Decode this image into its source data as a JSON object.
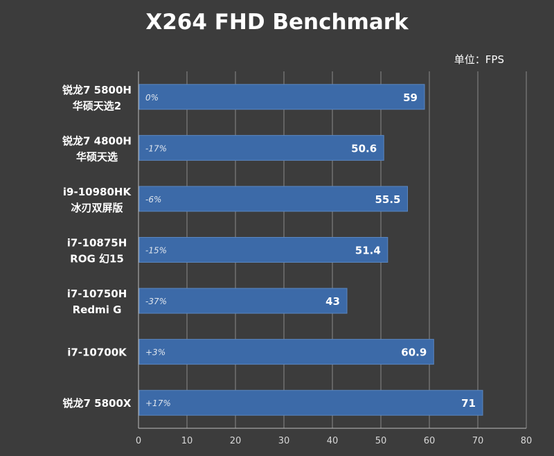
{
  "chart_data": {
    "type": "bar",
    "orientation": "horizontal",
    "title": "X264 FHD Benchmark",
    "unit_label": "单位：FPS",
    "categories": [
      [
        "锐龙7 5800H",
        "华硕天选2"
      ],
      [
        "锐龙7 4800H",
        "华硕天选"
      ],
      [
        "i9-10980HK",
        "冰刃双屏版"
      ],
      [
        "i7-10875H",
        "ROG 幻15"
      ],
      [
        "i7-10750H",
        "Redmi G"
      ],
      [
        "i7-10700K"
      ],
      [
        "锐龙7 5800X"
      ]
    ],
    "values": [
      59,
      50.6,
      55.5,
      51.4,
      43,
      60.9,
      71
    ],
    "value_labels": [
      "59",
      "50.6",
      "55.5",
      "51.4",
      "43",
      "60.9",
      "71"
    ],
    "percent_labels": [
      "0%",
      "-17%",
      "-6%",
      "-15%",
      "-37%",
      "+3%",
      "+17%"
    ],
    "xlim": [
      0,
      80
    ],
    "xticks": [
      0,
      10,
      20,
      30,
      40,
      50,
      60,
      70,
      80
    ],
    "grid": true,
    "colors": {
      "background": "#3c3c3c",
      "bar": "#3c6aa8",
      "bar_edge": "#5a86c0",
      "grid": "#8a8a8a",
      "axis": "#bdbdbd"
    }
  }
}
